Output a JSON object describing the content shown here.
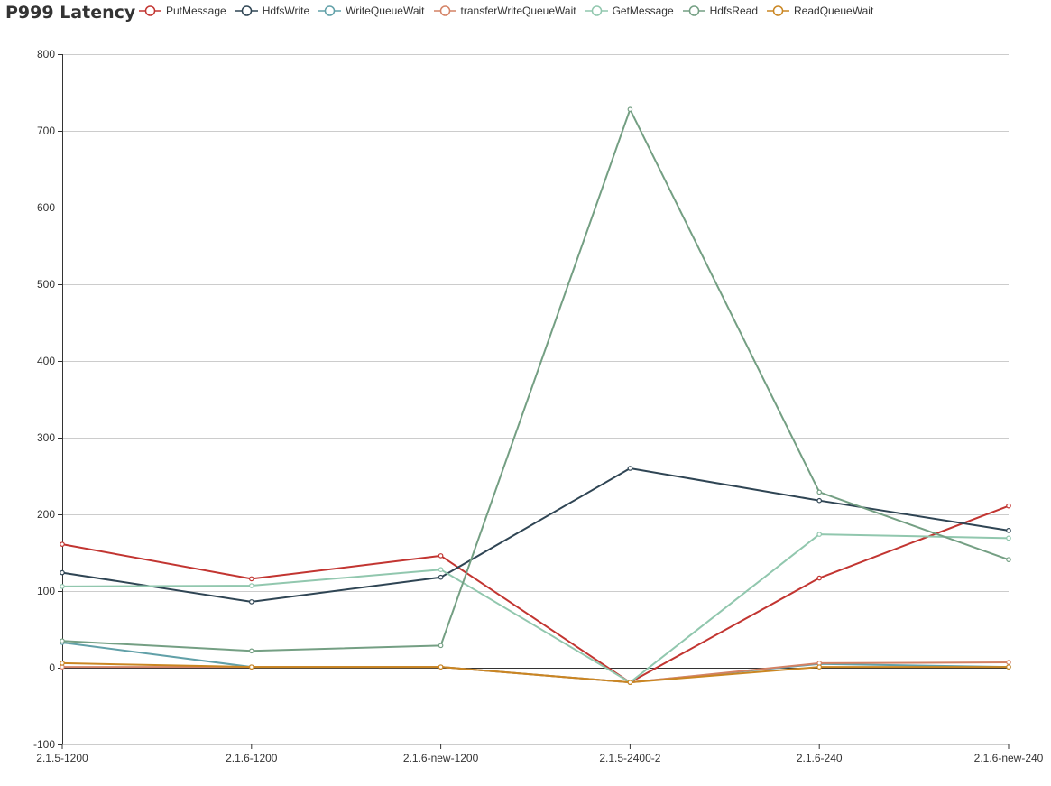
{
  "chart_data": {
    "type": "line",
    "title": "P999 Latency",
    "categories": [
      "2.1.5-1200",
      "2.1.6-1200",
      "2.1.6-new-1200",
      "2.1.5-2400-2",
      "2.1.6-240",
      "2.1.6-new-240"
    ],
    "ylim": [
      -100,
      800
    ],
    "yticks": [
      -100,
      0,
      100,
      200,
      300,
      400,
      500,
      600,
      700,
      800
    ],
    "grid": true,
    "legend_position": "top",
    "series": [
      {
        "name": "PutMessage",
        "color": "#c23531",
        "values": [
          161,
          116,
          146,
          -19,
          117,
          211
        ]
      },
      {
        "name": "HdfsWrite",
        "color": "#2f4554",
        "values": [
          124,
          86,
          118,
          260,
          218,
          179
        ]
      },
      {
        "name": "WriteQueueWait",
        "color": "#61a0a8",
        "values": [
          33,
          1,
          1,
          -19,
          5,
          1
        ]
      },
      {
        "name": "transferWriteQueueWait",
        "color": "#d48265",
        "values": [
          1,
          1,
          1,
          -19,
          6,
          7
        ]
      },
      {
        "name": "GetMessage",
        "color": "#91c7ae",
        "values": [
          106,
          107,
          128,
          -19,
          174,
          169
        ]
      },
      {
        "name": "HdfsRead",
        "color": "#749f83",
        "values": [
          35,
          22,
          29,
          728,
          229,
          141
        ]
      },
      {
        "name": "ReadQueueWait",
        "color": "#ca8622",
        "values": [
          6,
          1,
          1,
          -19,
          1,
          1
        ]
      }
    ]
  }
}
